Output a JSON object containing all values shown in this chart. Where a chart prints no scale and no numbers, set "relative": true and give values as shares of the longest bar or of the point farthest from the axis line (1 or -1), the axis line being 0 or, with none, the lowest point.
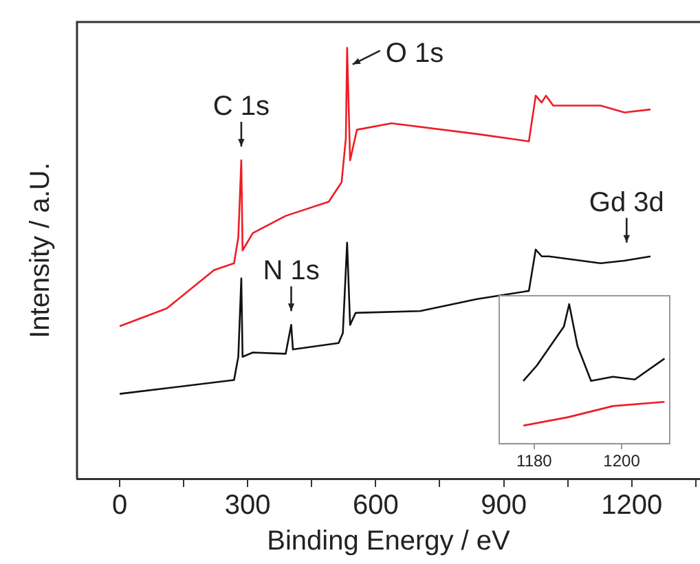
{
  "chart_data": [
    {
      "type": "line",
      "relative": true,
      "xlabel": "Binding Energy / eV",
      "ylabel": "Intensity / a.U.",
      "xlim": [
        -100,
        1360
      ],
      "xticks": [
        0,
        {
          "value": 150,
          "label": null
        },
        300,
        {
          "value": 450,
          "label": null
        },
        600,
        {
          "value": 750,
          "label": null
        },
        900,
        {
          "value": 1050,
          "label": null
        },
        1200,
        {
          "value": 1350,
          "label": null
        }
      ],
      "marker": "none",
      "legend": false,
      "grid": false,
      "annotations": [
        {
          "text": "C 1s",
          "x": 285,
          "y": 0.739
        },
        {
          "text": "O 1s",
          "x": 533,
          "y": 1.0
        },
        {
          "text": "N 1s",
          "x": 402,
          "y": 0.357
        },
        {
          "text": "Gd 3d",
          "x": 1188,
          "y": 0.516
        }
      ],
      "series": [
        {
          "color": "#ee1c24",
          "x": [
            0,
            110,
            221,
            268,
            278,
            285,
            288,
            312,
            389,
            490,
            520,
            530,
            533,
            540,
            556,
            637,
            838,
            959,
            975,
            989,
            999,
            1016,
            1127,
            1183,
            1244
          ],
          "values": [
            0.354,
            0.395,
            0.484,
            0.5,
            0.56,
            0.739,
            0.53,
            0.57,
            0.61,
            0.643,
            0.688,
            0.79,
            1.0,
            0.739,
            0.81,
            0.825,
            0.8,
            0.783,
            0.889,
            0.873,
            0.889,
            0.866,
            0.866,
            0.85,
            0.857
          ]
        },
        {
          "color": "#111111",
          "x": [
            0,
            268,
            278,
            285,
            288,
            312,
            389,
            402,
            406,
            513,
            523,
            533,
            540,
            553,
            704,
            838,
            959,
            975,
            989,
            1006,
            1127,
            1183,
            1244
          ],
          "values": [
            0.197,
            0.229,
            0.283,
            0.465,
            0.283,
            0.293,
            0.29,
            0.357,
            0.3,
            0.315,
            0.338,
            0.548,
            0.357,
            0.385,
            0.389,
            0.417,
            0.436,
            0.532,
            0.516,
            0.516,
            0.5,
            0.506,
            0.516
          ]
        }
      ]
    },
    {
      "type": "line",
      "relative": true,
      "xlim": [
        1172,
        1211
      ],
      "xticks": [
        1180,
        1200
      ],
      "marker": "none",
      "legend": false,
      "grid": false,
      "tick_labels": "x",
      "series": [
        {
          "color": "#111111",
          "x": [
            1177.5,
            1180.6,
            1183.7,
            1186.8,
            1188,
            1189.9,
            1193,
            1198,
            1203,
            1209.8
          ],
          "values": [
            0.45,
            0.56,
            0.7,
            0.84,
            1.0,
            0.7,
            0.45,
            0.48,
            0.46,
            0.61
          ]
        },
        {
          "color": "#ee1c24",
          "x": [
            1177.5,
            1187.7,
            1198,
            1209.8
          ],
          "values": [
            0.13,
            0.19,
            0.27,
            0.3
          ]
        }
      ]
    }
  ]
}
